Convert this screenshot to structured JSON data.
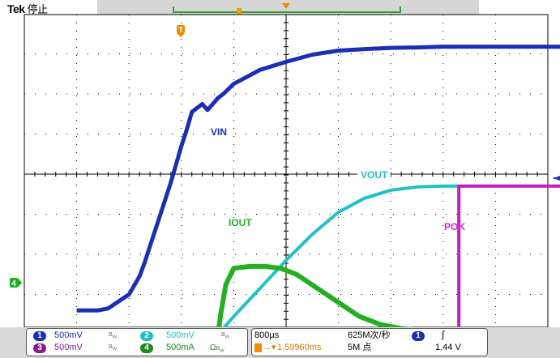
{
  "header": {
    "brand": "Tek",
    "status": "停止"
  },
  "channels": [
    {
      "id": "1",
      "scale": "500mV",
      "color": "#1a2fb5",
      "coupling_icon": "bandwidth-limit-icon"
    },
    {
      "id": "2",
      "scale": "500mV",
      "color": "#22bfc8",
      "coupling_icon": "bandwidth-limit-icon"
    },
    {
      "id": "3",
      "scale": "500mV",
      "color": "#8b1a8b",
      "coupling_icon": "bandwidth-limit-icon"
    },
    {
      "id": "4",
      "scale": "500mA",
      "color": "#1e8a1e",
      "coupling_icon": "ohm-bandwidth-icon",
      "extra": "Ω"
    }
  ],
  "timebase": {
    "scale": "800µs",
    "sample_rate": "625M次/秒",
    "record_length": "5M 点",
    "trigger_position": "1.59960ms"
  },
  "trigger": {
    "source": "1",
    "slope": "∫",
    "level": "1.44 V"
  },
  "waveform_labels": {
    "vin": "VIN",
    "vout": "VOUT",
    "iout": "IOUT",
    "pok": "POK"
  },
  "markers": {
    "trigger_marker": "T",
    "ch4_ground": "4"
  },
  "colors": {
    "vin": "#1a2fb5",
    "vout": "#22c0c8",
    "iout": "#22b022",
    "pok": "#c020c0",
    "trigger": "#f08c00",
    "grid": "#000000"
  },
  "chart_data": {
    "type": "line",
    "xlim": [
      -4,
      6
    ],
    "ylim": [
      -4,
      4
    ],
    "x_unit": "div",
    "y_unit": "div",
    "grid": true,
    "series": [
      {
        "name": "VIN",
        "x": [
          -4,
          -3.9,
          -3.6,
          -3.4,
          -3.0,
          -2.8,
          -2.7,
          -2.6,
          -2.4,
          -2.2,
          -2.0,
          -1.9,
          -1.8,
          -1.75,
          -1.6,
          -1.5,
          -1.4,
          -1.3,
          -1.2,
          -1.0,
          -0.5,
          0,
          0.5,
          1.0,
          1.5,
          2.0,
          2.5,
          3.0,
          4.0,
          5.0,
          6.0
        ],
        "y": [
          -3.4,
          -3.4,
          -3.4,
          -3.35,
          -3.0,
          -2.55,
          -2.2,
          -1.8,
          -1.0,
          -0.2,
          0.7,
          1.1,
          1.55,
          1.6,
          1.75,
          1.6,
          1.75,
          1.9,
          2.0,
          2.25,
          2.6,
          2.8,
          2.98,
          3.08,
          3.12,
          3.15,
          3.16,
          3.18,
          3.18,
          3.18,
          3.18
        ]
      },
      {
        "name": "VOUT",
        "x": [
          -1.3,
          -1.0,
          -0.5,
          0,
          0.5,
          1.0,
          1.5,
          2.0,
          2.5,
          3.0,
          3.3
        ],
        "y": [
          -4.0,
          -3.55,
          -2.85,
          -2.15,
          -1.5,
          -0.95,
          -0.6,
          -0.4,
          -0.32,
          -0.3,
          -0.3
        ]
      },
      {
        "name": "IOUT",
        "x": [
          -4,
          -1.3,
          -1.25,
          -1.15,
          -1.0,
          -0.7,
          -0.4,
          -0.1,
          0.2,
          0.6,
          1.0,
          1.4,
          1.8,
          2.2,
          2.6,
          3.0,
          4.0,
          6.0
        ],
        "y": [
          -4.0,
          -4.0,
          -3.5,
          -2.75,
          -2.35,
          -2.3,
          -2.3,
          -2.35,
          -2.5,
          -2.85,
          -3.2,
          -3.55,
          -3.75,
          -3.85,
          -3.9,
          -3.9,
          -3.9,
          -3.9
        ]
      },
      {
        "name": "POK",
        "x": [
          -4,
          3.3,
          3.3,
          6.0
        ],
        "y": [
          -4.1,
          -4.1,
          -0.3,
          -0.3
        ]
      }
    ]
  }
}
